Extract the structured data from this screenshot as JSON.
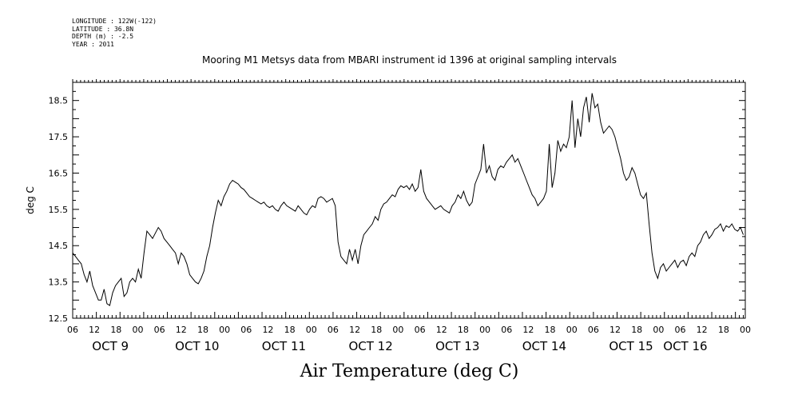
{
  "meta": {
    "longitude": "LONGITUDE : 122W(-122)",
    "latitude": "LATITUDE : 36.8N",
    "depth": "DEPTH (m) : -2.5",
    "year": "YEAR : 2011"
  },
  "chart_data": {
    "type": "line",
    "title": "Mooring M1 Metsys data from MBARI instrument id 1396 at original sampling intervals",
    "xlabel": "Air Temperature (deg C)",
    "ylabel": "deg C",
    "ylim": [
      12.5,
      19.0
    ],
    "y_ticks": [
      "12.5",
      "13.5",
      "14.5",
      "15.5",
      "16.5",
      "17.5",
      "18.5"
    ],
    "xlim_hours": [
      0,
      168
    ],
    "hour_tick_labels": [
      "06",
      "12",
      "18",
      "00",
      "06",
      "12",
      "18",
      "00",
      "06",
      "12",
      "18",
      "00",
      "06",
      "12",
      "18",
      "00",
      "06",
      "12",
      "18",
      "00",
      "06",
      "12",
      "18",
      "00",
      "06",
      "12",
      "18",
      "00",
      "06",
      "12",
      "18",
      "00"
    ],
    "day_labels": [
      {
        "label": "OCT  9",
        "hour": 6
      },
      {
        "label": "OCT 10",
        "hour": 30
      },
      {
        "label": "OCT 11",
        "hour": 54
      },
      {
        "label": "OCT 12",
        "hour": 78
      },
      {
        "label": "OCT 13",
        "hour": 102
      },
      {
        "label": "OCT 14",
        "hour": 126
      },
      {
        "label": "OCT 15",
        "hour": 150
      },
      {
        "label": "OCT 16",
        "hour": 165
      }
    ],
    "grid": false,
    "series": [
      {
        "x_note": "hours after OCT 9 06:00",
        "points": [
          [
            0,
            14.3
          ],
          [
            1,
            14.2
          ],
          [
            2,
            14.1
          ],
          [
            3,
            14.0
          ],
          [
            4,
            13.7
          ],
          [
            5,
            13.5
          ],
          [
            6,
            13.8
          ],
          [
            7,
            13.4
          ],
          [
            8,
            13.2
          ],
          [
            9,
            13.0
          ],
          [
            10,
            13.0
          ],
          [
            11,
            13.3
          ],
          [
            12,
            12.9
          ],
          [
            13,
            12.85
          ],
          [
            14,
            13.2
          ],
          [
            15,
            13.4
          ],
          [
            16,
            13.5
          ],
          [
            17,
            13.6
          ],
          [
            18,
            13.1
          ],
          [
            19,
            13.2
          ],
          [
            20,
            13.5
          ],
          [
            21,
            13.6
          ],
          [
            22,
            13.5
          ],
          [
            23,
            13.85
          ],
          [
            24,
            13.6
          ],
          [
            25,
            14.3
          ],
          [
            26,
            14.9
          ],
          [
            27,
            14.8
          ],
          [
            28,
            14.7
          ],
          [
            29,
            14.85
          ],
          [
            30,
            15.0
          ],
          [
            31,
            14.9
          ],
          [
            32,
            14.7
          ],
          [
            33,
            14.6
          ],
          [
            34,
            14.5
          ],
          [
            35,
            14.4
          ],
          [
            36,
            14.3
          ],
          [
            37,
            14.0
          ],
          [
            38,
            14.3
          ],
          [
            39,
            14.2
          ],
          [
            40,
            14.0
          ],
          [
            41,
            13.7
          ],
          [
            42,
            13.6
          ],
          [
            43,
            13.5
          ],
          [
            44,
            13.45
          ],
          [
            45,
            13.6
          ],
          [
            46,
            13.8
          ],
          [
            47,
            14.2
          ],
          [
            48,
            14.5
          ],
          [
            49,
            15.0
          ],
          [
            50,
            15.4
          ],
          [
            51,
            15.75
          ],
          [
            52,
            15.6
          ],
          [
            53,
            15.85
          ],
          [
            54,
            16.0
          ],
          [
            55,
            16.2
          ],
          [
            56,
            16.3
          ],
          [
            57,
            16.25
          ],
          [
            58,
            16.2
          ],
          [
            59,
            16.1
          ],
          [
            60,
            16.05
          ],
          [
            61,
            15.95
          ],
          [
            62,
            15.85
          ],
          [
            63,
            15.8
          ],
          [
            64,
            15.75
          ],
          [
            65,
            15.7
          ],
          [
            66,
            15.65
          ],
          [
            67,
            15.7
          ],
          [
            68,
            15.6
          ],
          [
            69,
            15.55
          ],
          [
            70,
            15.6
          ],
          [
            71,
            15.5
          ],
          [
            72,
            15.45
          ],
          [
            73,
            15.6
          ],
          [
            74,
            15.7
          ],
          [
            75,
            15.6
          ],
          [
            76,
            15.55
          ],
          [
            77,
            15.5
          ],
          [
            78,
            15.45
          ],
          [
            79,
            15.6
          ],
          [
            80,
            15.5
          ],
          [
            81,
            15.4
          ],
          [
            82,
            15.35
          ],
          [
            83,
            15.5
          ],
          [
            84,
            15.6
          ],
          [
            85,
            15.55
          ],
          [
            86,
            15.8
          ],
          [
            87,
            15.85
          ],
          [
            88,
            15.8
          ],
          [
            89,
            15.7
          ],
          [
            90,
            15.75
          ],
          [
            91,
            15.8
          ],
          [
            92,
            15.6
          ],
          [
            93,
            14.6
          ],
          [
            94,
            14.2
          ],
          [
            95,
            14.1
          ],
          [
            96,
            14.0
          ],
          [
            97,
            14.4
          ],
          [
            98,
            14.1
          ],
          [
            99,
            14.4
          ],
          [
            100,
            14.0
          ],
          [
            101,
            14.5
          ],
          [
            102,
            14.8
          ],
          [
            103,
            14.9
          ],
          [
            104,
            15.0
          ],
          [
            105,
            15.1
          ],
          [
            106,
            15.3
          ],
          [
            107,
            15.2
          ],
          [
            108,
            15.5
          ],
          [
            109,
            15.65
          ],
          [
            110,
            15.7
          ],
          [
            111,
            15.8
          ],
          [
            112,
            15.9
          ],
          [
            113,
            15.85
          ],
          [
            114,
            16.05
          ],
          [
            115,
            16.15
          ],
          [
            116,
            16.1
          ],
          [
            117,
            16.15
          ],
          [
            118,
            16.05
          ],
          [
            119,
            16.2
          ],
          [
            120,
            16.0
          ],
          [
            121,
            16.1
          ],
          [
            122,
            16.6
          ],
          [
            123,
            16.0
          ],
          [
            124,
            15.8
          ],
          [
            125,
            15.7
          ],
          [
            126,
            15.6
          ],
          [
            127,
            15.5
          ],
          [
            128,
            15.55
          ],
          [
            129,
            15.6
          ],
          [
            130,
            15.5
          ],
          [
            131,
            15.45
          ],
          [
            132,
            15.4
          ],
          [
            133,
            15.6
          ],
          [
            134,
            15.7
          ],
          [
            135,
            15.9
          ],
          [
            136,
            15.8
          ],
          [
            137,
            16.0
          ],
          [
            138,
            15.75
          ],
          [
            139,
            15.6
          ],
          [
            140,
            15.7
          ],
          [
            141,
            16.2
          ],
          [
            142,
            16.4
          ],
          [
            143,
            16.6
          ],
          [
            144,
            17.3
          ],
          [
            145,
            16.5
          ],
          [
            146,
            16.7
          ],
          [
            147,
            16.4
          ],
          [
            148,
            16.3
          ],
          [
            149,
            16.6
          ],
          [
            150,
            16.7
          ],
          [
            151,
            16.65
          ],
          [
            152,
            16.8
          ],
          [
            153,
            16.9
          ],
          [
            154,
            17.0
          ],
          [
            155,
            16.8
          ],
          [
            156,
            16.9
          ],
          [
            157,
            16.7
          ],
          [
            158,
            16.5
          ],
          [
            159,
            16.3
          ],
          [
            160,
            16.1
          ],
          [
            161,
            15.9
          ],
          [
            162,
            15.8
          ],
          [
            163,
            15.6
          ],
          [
            164,
            15.7
          ],
          [
            165,
            15.8
          ],
          [
            166,
            16.0
          ],
          [
            167,
            17.3
          ],
          [
            168,
            16.1
          ],
          [
            169,
            16.5
          ],
          [
            170,
            17.4
          ],
          [
            171,
            17.1
          ],
          [
            172,
            17.3
          ],
          [
            173,
            17.2
          ],
          [
            174,
            17.5
          ],
          [
            175,
            18.5
          ],
          [
            176,
            17.2
          ],
          [
            177,
            18.0
          ],
          [
            178,
            17.5
          ],
          [
            179,
            18.3
          ],
          [
            180,
            18.6
          ],
          [
            181,
            17.9
          ],
          [
            182,
            18.7
          ],
          [
            183,
            18.3
          ],
          [
            184,
            18.4
          ],
          [
            185,
            17.9
          ],
          [
            186,
            17.6
          ],
          [
            187,
            17.7
          ],
          [
            188,
            17.8
          ],
          [
            189,
            17.7
          ],
          [
            190,
            17.5
          ],
          [
            191,
            17.2
          ],
          [
            192,
            16.9
          ],
          [
            193,
            16.5
          ],
          [
            194,
            16.3
          ],
          [
            195,
            16.4
          ],
          [
            196,
            16.65
          ],
          [
            197,
            16.5
          ],
          [
            198,
            16.2
          ],
          [
            199,
            15.9
          ],
          [
            200,
            15.8
          ],
          [
            201,
            15.95
          ],
          [
            202,
            15.1
          ],
          [
            203,
            14.3
          ],
          [
            204,
            13.8
          ],
          [
            205,
            13.6
          ],
          [
            206,
            13.9
          ],
          [
            207,
            14.0
          ],
          [
            208,
            13.8
          ],
          [
            209,
            13.9
          ],
          [
            210,
            14.0
          ],
          [
            211,
            14.1
          ],
          [
            212,
            13.9
          ],
          [
            213,
            14.05
          ],
          [
            214,
            14.1
          ],
          [
            215,
            13.95
          ],
          [
            216,
            14.2
          ],
          [
            217,
            14.3
          ],
          [
            218,
            14.2
          ],
          [
            219,
            14.5
          ],
          [
            220,
            14.6
          ],
          [
            221,
            14.8
          ],
          [
            222,
            14.9
          ],
          [
            223,
            14.7
          ],
          [
            224,
            14.8
          ],
          [
            225,
            14.95
          ],
          [
            226,
            15.0
          ],
          [
            227,
            15.1
          ],
          [
            228,
            14.9
          ],
          [
            229,
            15.05
          ],
          [
            230,
            15.0
          ],
          [
            231,
            15.1
          ],
          [
            232,
            14.95
          ],
          [
            233,
            14.9
          ],
          [
            234,
            15.0
          ],
          [
            235,
            14.8
          ]
        ]
      }
    ]
  }
}
